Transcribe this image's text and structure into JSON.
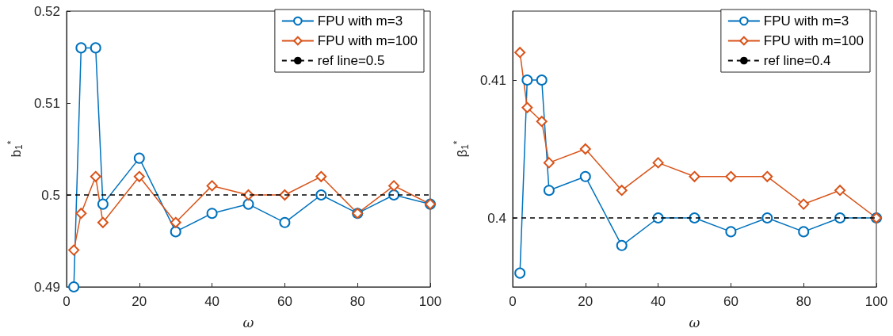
{
  "chart_data": [
    {
      "type": "line",
      "xlabel": "ω",
      "ylabel": "b$_{1}$$^{*}$",
      "x": [
        2,
        4,
        8,
        10,
        20,
        30,
        40,
        50,
        60,
        70,
        80,
        90,
        100
      ],
      "series": [
        {
          "name": "FPU with m=3",
          "color": "#0072bd",
          "marker": "circle",
          "values": [
            0.49,
            0.516,
            0.516,
            0.499,
            0.504,
            0.496,
            0.498,
            0.499,
            0.497,
            0.5,
            0.498,
            0.5,
            0.499
          ]
        },
        {
          "name": "FPU with m=100",
          "color": "#d95319",
          "marker": "diamond",
          "values": [
            0.494,
            0.498,
            0.502,
            0.497,
            0.502,
            0.497,
            0.501,
            0.5,
            0.5,
            0.502,
            0.498,
            0.501,
            0.499
          ]
        }
      ],
      "ref_lines": [
        {
          "axis": "y",
          "value": 0.5,
          "label": "ref line=0.5",
          "color": "#000000",
          "line_style": "dashed"
        }
      ],
      "xlim": [
        0,
        100
      ],
      "xticks": [
        0,
        20,
        40,
        60,
        80,
        100
      ],
      "ylim": [
        0.49,
        0.52
      ],
      "yticks": [
        0.49,
        0.5,
        0.51,
        0.52
      ],
      "grid": false,
      "legend": "top right"
    },
    {
      "type": "line",
      "xlabel": "ω",
      "ylabel": "β$_{1}$$^{*}$",
      "x": [
        2,
        4,
        8,
        10,
        20,
        30,
        40,
        50,
        60,
        70,
        80,
        90,
        100
      ],
      "series": [
        {
          "name": "FPU with m=3",
          "color": "#0072bd",
          "marker": "circle",
          "values": [
            0.396,
            0.41,
            0.41,
            0.402,
            0.403,
            0.398,
            0.4,
            0.4,
            0.399,
            0.4,
            0.399,
            0.4,
            0.4
          ]
        },
        {
          "name": "FPU with m=100",
          "color": "#d95319",
          "marker": "diamond",
          "values": [
            0.412,
            0.408,
            0.407,
            0.404,
            0.405,
            0.402,
            0.404,
            0.403,
            0.403,
            0.403,
            0.401,
            0.402,
            0.4
          ]
        }
      ],
      "ref_lines": [
        {
          "axis": "y",
          "value": 0.4,
          "label": "ref line=0.4",
          "color": "#000000",
          "line_style": "dashed"
        }
      ],
      "xlim": [
        0,
        100
      ],
      "xticks": [
        0,
        20,
        40,
        60,
        80,
        100
      ],
      "ylim": [
        0.395,
        0.415
      ],
      "yticks": [
        0.4,
        0.41
      ],
      "grid": false,
      "legend": "top right"
    }
  ]
}
